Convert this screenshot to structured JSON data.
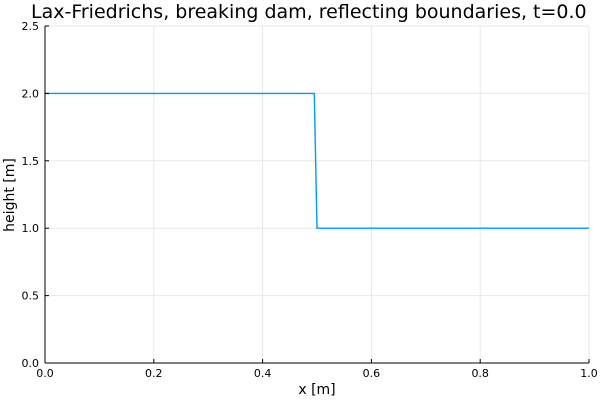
{
  "chart_data": {
    "type": "line",
    "title": "Lax-Friedrichs, breaking dam, reflecting boundaries, t=0.0",
    "xlabel": "x [m]",
    "ylabel": "height [m]",
    "xlim": [
      0,
      1
    ],
    "ylim": [
      0,
      2.5
    ],
    "x_ticks": [
      "0.0",
      "0.2",
      "0.4",
      "0.6",
      "0.8",
      "1.0"
    ],
    "y_ticks": [
      "0.0",
      "0.5",
      "1.0",
      "1.5",
      "2.0",
      "2.5"
    ],
    "grid": true,
    "legend": "none",
    "series": [
      {
        "color": "#009AFA",
        "x": [
          0.0,
          0.495,
          0.5,
          1.0
        ],
        "y": [
          2.0,
          2.0,
          1.0,
          1.0
        ]
      }
    ]
  }
}
